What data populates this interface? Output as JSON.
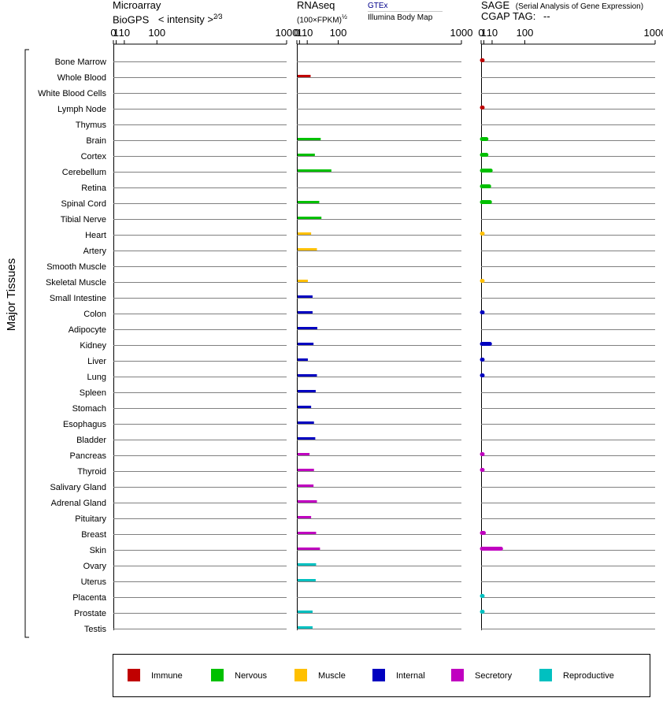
{
  "headers": {
    "microarray_title": "Microarray",
    "microarray_sub": "BioGPS",
    "microarray_scale": "< intensity >",
    "microarray_exp": "2⁄3",
    "rnaseq_title": "RNAseq",
    "rnaseq_unit": "(100×FPKM)",
    "rnaseq_exp": "½",
    "rnaseq_link": "GTEx",
    "rnaseq_source": "Illumina Body Map",
    "sage_title": "SAGE",
    "sage_desc": "(Serial Analysis of Gene Expression)",
    "sage_tag": "CGAP TAG:",
    "sage_tag_value": "--"
  },
  "colors": {
    "Immune": "#c00000",
    "Nervous": "#00c000",
    "Muscle": "#ffc000",
    "Internal": "#0000c0",
    "Secretory": "#c000c0",
    "Reproductive": "#00c0c0"
  },
  "legend": [
    {
      "label": "Immune",
      "group": "Immune"
    },
    {
      "label": "Nervous",
      "group": "Nervous"
    },
    {
      "label": "Muscle",
      "group": "Muscle"
    },
    {
      "label": "Internal",
      "group": "Internal"
    },
    {
      "label": "Secretory",
      "group": "Secretory"
    },
    {
      "label": "Reproductive",
      "group": "Reproductive"
    }
  ],
  "chart_data": {
    "type": "bar",
    "orientation": "horizontal",
    "ylabel": "Major Tissues",
    "x_scale": "power",
    "x_ticks": [
      "0",
      "1",
      "10",
      "100",
      "1000"
    ],
    "x_range": [
      0,
      1000
    ],
    "categories": [
      "Bone Marrow",
      "Whole Blood",
      "White Blood Cells",
      "Lymph Node",
      "Thymus",
      "Brain",
      "Cortex",
      "Cerebellum",
      "Retina",
      "Spinal Cord",
      "Tibial Nerve",
      "Heart",
      "Artery",
      "Smooth Muscle",
      "Skeletal Muscle",
      "Small Intestine",
      "Colon",
      "Adipocyte",
      "Kidney",
      "Liver",
      "Lung",
      "Spleen",
      "Stomach",
      "Esophagus",
      "Bladder",
      "Pancreas",
      "Thyroid",
      "Salivary Gland",
      "Adrenal Gland",
      "Pituitary",
      "Breast",
      "Skin",
      "Ovary",
      "Uterus",
      "Placenta",
      "Prostate",
      "Testis"
    ],
    "groups": [
      "Immune",
      "Immune",
      "Immune",
      "Immune",
      "Immune",
      "Nervous",
      "Nervous",
      "Nervous",
      "Nervous",
      "Nervous",
      "Nervous",
      "Muscle",
      "Muscle",
      "Muscle",
      "Muscle",
      "Internal",
      "Internal",
      "Internal",
      "Internal",
      "Internal",
      "Internal",
      "Internal",
      "Internal",
      "Internal",
      "Internal",
      "Secretory",
      "Secretory",
      "Secretory",
      "Secretory",
      "Secretory",
      "Secretory",
      "Secretory",
      "Reproductive",
      "Reproductive",
      "Reproductive",
      "Reproductive",
      "Reproductive"
    ],
    "series": [
      {
        "name": "Microarray",
        "values": [
          0,
          0,
          0,
          0,
          0,
          0,
          0,
          0,
          0,
          0,
          0,
          0,
          0,
          0,
          0,
          0,
          0,
          0,
          0,
          0,
          0,
          0,
          0,
          0,
          0,
          0,
          0,
          0,
          0,
          0,
          0,
          0,
          0,
          0,
          0,
          0,
          0
        ]
      },
      {
        "name": "RNAseq",
        "values": [
          0,
          16,
          0,
          0,
          0,
          40,
          25,
          74,
          0,
          36,
          42,
          17,
          30,
          0,
          11,
          20,
          20,
          31,
          22,
          11,
          30,
          27,
          17,
          23,
          26,
          14,
          23,
          22,
          30,
          17,
          28,
          38,
          28,
          27,
          0,
          20,
          20
        ]
      },
      {
        "name": "SAGE",
        "values": [
          0.05,
          0,
          0,
          0.05,
          0,
          3,
          3,
          8,
          6,
          7,
          0,
          0.03,
          0,
          0,
          0.03,
          0,
          0.05,
          0,
          7,
          0.05,
          0.05,
          0,
          0,
          0,
          0,
          0.05,
          0.05,
          0,
          0,
          0,
          1,
          27,
          0,
          0,
          0.05,
          0.05,
          0
        ]
      }
    ]
  }
}
